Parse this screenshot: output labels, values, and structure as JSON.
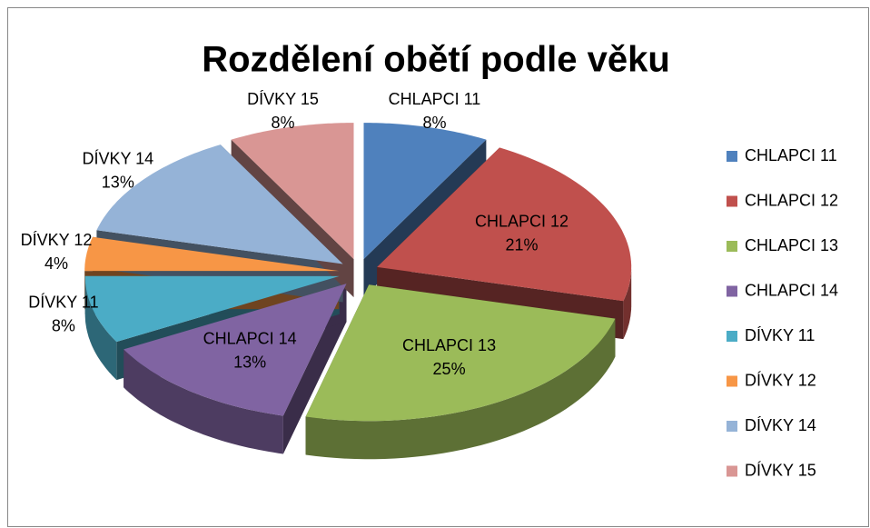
{
  "chart_data": {
    "type": "pie",
    "title": "Rozdělení obětí podle věku",
    "categories": [
      "CHLAPCI 11",
      "CHLAPCI 12",
      "CHLAPCI 13",
      "CHLAPCI 14",
      "DÍVKY 11",
      "DÍVKY 12",
      "DÍVKY 14",
      "DÍVKY 15"
    ],
    "values": [
      8,
      21,
      25,
      13,
      8,
      4,
      13,
      8
    ],
    "value_labels": [
      "8%",
      "21%",
      "25%",
      "13%",
      "8%",
      "4%",
      "13%",
      "8%"
    ],
    "colors": [
      "#4f81bd",
      "#c0504d",
      "#9bbb59",
      "#8064a2",
      "#4bacc6",
      "#f79646",
      "#95b3d7",
      "#d99694"
    ],
    "legend": "right"
  }
}
